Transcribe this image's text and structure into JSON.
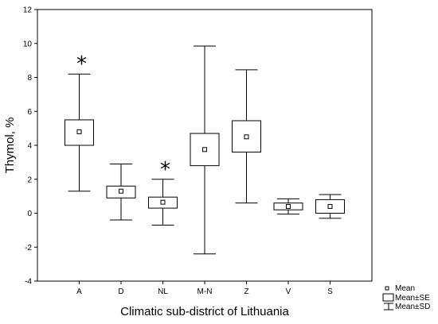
{
  "chart_data": {
    "type": "box",
    "xlabel": "Climatic sub-district of Lithuania",
    "ylabel": "Thymol, %",
    "ylim": [
      -4,
      12
    ],
    "yticks": [
      -4,
      -2,
      0,
      2,
      4,
      6,
      8,
      10,
      12
    ],
    "categories": [
      "A",
      "D",
      "NL",
      "M-N",
      "Z",
      "V",
      "S"
    ],
    "mean": [
      4.8,
      1.3,
      0.65,
      3.75,
      4.5,
      0.4,
      0.4
    ],
    "se_low": [
      4.0,
      0.9,
      0.3,
      2.8,
      3.6,
      0.2,
      0.0
    ],
    "se_high": [
      5.5,
      1.6,
      0.95,
      4.7,
      5.45,
      0.6,
      0.8
    ],
    "sd_low": [
      1.3,
      -0.4,
      -0.7,
      -2.4,
      0.6,
      -0.05,
      -0.3
    ],
    "sd_high": [
      8.2,
      2.9,
      2.0,
      9.85,
      8.45,
      0.85,
      1.1
    ],
    "annotations": [
      {
        "category": "A",
        "text": "*"
      },
      {
        "category": "NL",
        "text": "*"
      }
    ],
    "legend": {
      "position": "bottom-right",
      "entries": [
        "Mean",
        "Mean±SE",
        "Mean±SD"
      ]
    }
  }
}
